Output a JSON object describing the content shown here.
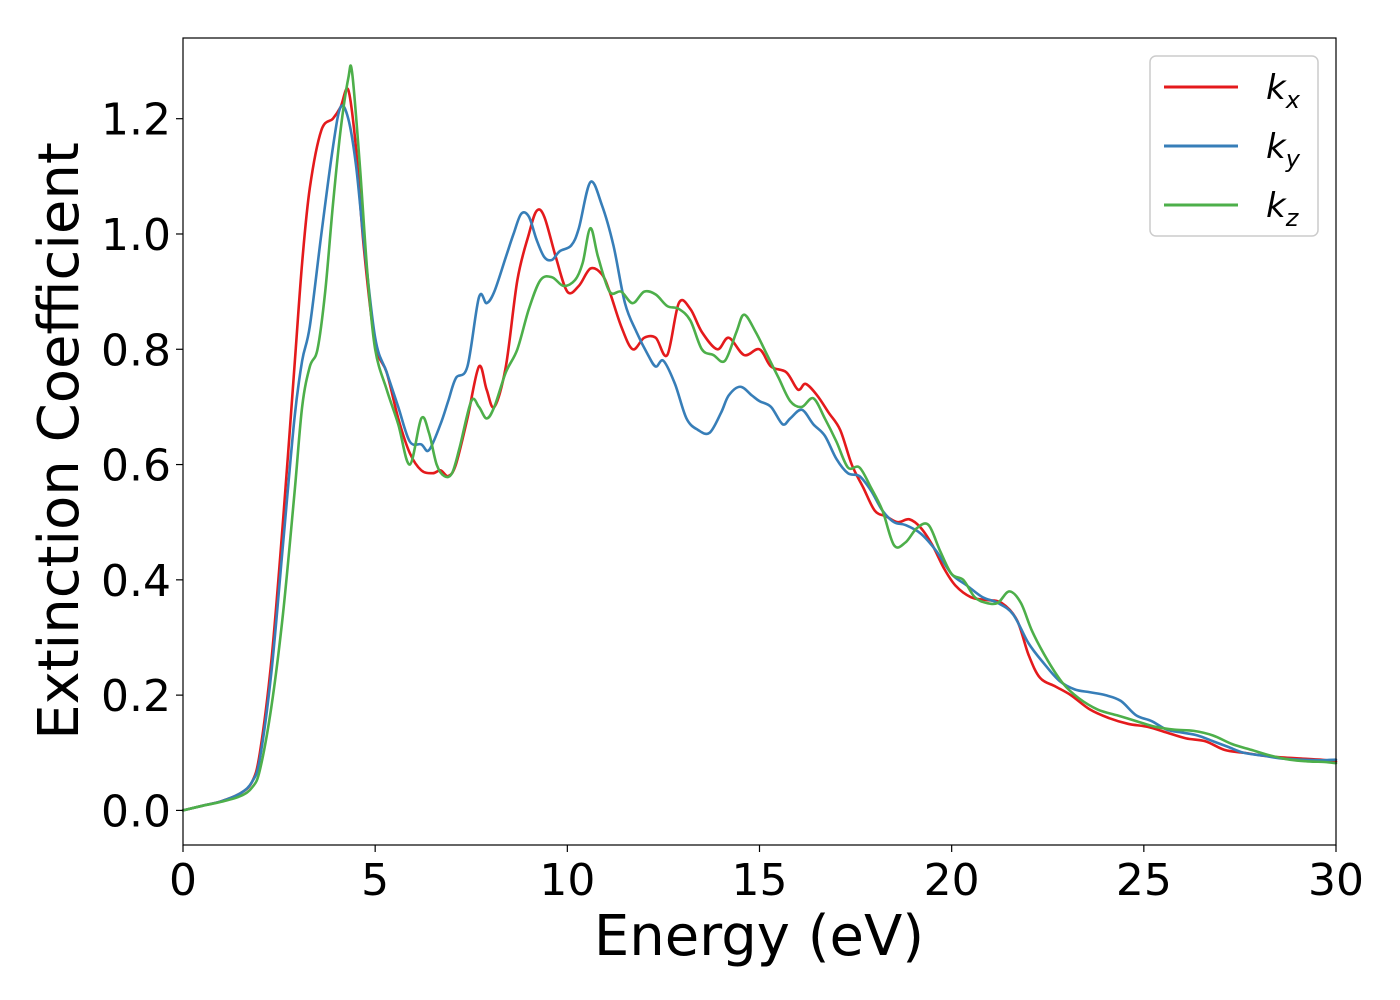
{
  "chart_data": {
    "type": "line",
    "xlabel": "Energy (eV)",
    "ylabel": "Extinction Coefficient",
    "xlim": [
      0,
      30
    ],
    "ylim": [
      -0.06,
      1.34
    ],
    "xticks": [
      0,
      5,
      10,
      15,
      20,
      25,
      30
    ],
    "yticks": [
      0.0,
      0.2,
      0.4,
      0.6,
      0.8,
      1.0,
      1.2
    ],
    "xtick_labels": [
      "0",
      "5",
      "10",
      "15",
      "20",
      "25",
      "30"
    ],
    "ytick_labels": [
      "0.0",
      "0.2",
      "0.4",
      "0.6",
      "0.8",
      "1.0",
      "1.2"
    ],
    "grid": false,
    "legend_position": "top-right",
    "series": [
      {
        "name": "k_x",
        "base": "k",
        "sub": "x",
        "color": "#e41a1c",
        "x": [
          0,
          0.5,
          1,
          1.5,
          1.8,
          2,
          2.3,
          2.6,
          2.9,
          3.1,
          3.3,
          3.6,
          3.9,
          4.1,
          4.3,
          4.5,
          4.7,
          5,
          5.3,
          5.6,
          5.9,
          6.2,
          6.5,
          6.7,
          6.9,
          7.1,
          7.4,
          7.7,
          7.9,
          8.1,
          8.4,
          8.7,
          9,
          9.2,
          9.4,
          9.7,
          10,
          10.3,
          10.6,
          10.9,
          11.1,
          11.4,
          11.7,
          12,
          12.3,
          12.6,
          12.9,
          13.2,
          13.5,
          13.9,
          14.2,
          14.6,
          15,
          15.3,
          15.7,
          16,
          16.2,
          16.5,
          16.8,
          17.1,
          17.4,
          17.7,
          18,
          18.3,
          18.6,
          18.9,
          19.2,
          19.5,
          19.8,
          20.1,
          20.5,
          20.9,
          21.3,
          21.7,
          22,
          22.3,
          22.7,
          23.1,
          23.6,
          24.1,
          24.6,
          25.1,
          25.6,
          26.1,
          26.6,
          27.1,
          27.6,
          28.1,
          28.6,
          29.1,
          29.6,
          30
        ],
        "y": [
          0,
          0.008,
          0.016,
          0.03,
          0.05,
          0.1,
          0.26,
          0.5,
          0.77,
          0.95,
          1.08,
          1.18,
          1.2,
          1.22,
          1.25,
          1.15,
          0.98,
          0.81,
          0.76,
          0.68,
          0.62,
          0.59,
          0.585,
          0.59,
          0.58,
          0.6,
          0.68,
          0.77,
          0.73,
          0.7,
          0.77,
          0.92,
          1.0,
          1.04,
          1.03,
          0.96,
          0.9,
          0.91,
          0.94,
          0.93,
          0.9,
          0.84,
          0.8,
          0.82,
          0.82,
          0.79,
          0.88,
          0.87,
          0.83,
          0.8,
          0.82,
          0.79,
          0.8,
          0.77,
          0.76,
          0.73,
          0.74,
          0.72,
          0.69,
          0.66,
          0.6,
          0.56,
          0.52,
          0.51,
          0.5,
          0.505,
          0.49,
          0.46,
          0.42,
          0.39,
          0.37,
          0.365,
          0.36,
          0.33,
          0.27,
          0.23,
          0.215,
          0.2,
          0.175,
          0.16,
          0.15,
          0.145,
          0.135,
          0.125,
          0.12,
          0.105,
          0.1,
          0.095,
          0.092,
          0.09,
          0.088,
          0.085
        ]
      },
      {
        "name": "k_y",
        "base": "k",
        "sub": "y",
        "color": "#377eb8",
        "x": [
          0,
          0.5,
          1,
          1.5,
          1.8,
          2,
          2.3,
          2.6,
          2.9,
          3.1,
          3.3,
          3.6,
          3.9,
          4.1,
          4.3,
          4.5,
          4.7,
          5,
          5.3,
          5.6,
          5.9,
          6.2,
          6.4,
          6.7,
          6.9,
          7.1,
          7.4,
          7.7,
          7.9,
          8.1,
          8.4,
          8.6,
          8.8,
          9,
          9.2,
          9.4,
          9.6,
          9.8,
          10.1,
          10.3,
          10.6,
          10.9,
          11.2,
          11.5,
          11.8,
          12.1,
          12.3,
          12.5,
          12.8,
          13.1,
          13.4,
          13.7,
          14,
          14.2,
          14.5,
          14.8,
          15,
          15.3,
          15.6,
          15.8,
          16.1,
          16.4,
          16.7,
          17,
          17.3,
          17.6,
          17.9,
          18.2,
          18.5,
          18.8,
          19.2,
          19.6,
          20,
          20.4,
          20.8,
          21.2,
          21.6,
          22,
          22.4,
          22.8,
          23.2,
          23.6,
          24,
          24.4,
          24.8,
          25.2,
          25.6,
          26,
          26.4,
          26.8,
          27.2,
          27.6,
          28.1,
          28.6,
          29.1,
          29.6,
          30
        ],
        "y": [
          0,
          0.008,
          0.016,
          0.03,
          0.05,
          0.09,
          0.24,
          0.46,
          0.68,
          0.78,
          0.84,
          1.0,
          1.15,
          1.22,
          1.2,
          1.12,
          0.99,
          0.82,
          0.76,
          0.7,
          0.64,
          0.635,
          0.625,
          0.67,
          0.71,
          0.75,
          0.77,
          0.89,
          0.88,
          0.9,
          0.96,
          1.0,
          1.035,
          1.03,
          0.99,
          0.96,
          0.955,
          0.97,
          0.98,
          1.01,
          1.09,
          1.05,
          0.98,
          0.88,
          0.83,
          0.79,
          0.77,
          0.78,
          0.74,
          0.68,
          0.66,
          0.655,
          0.69,
          0.72,
          0.735,
          0.72,
          0.71,
          0.7,
          0.67,
          0.68,
          0.695,
          0.67,
          0.65,
          0.61,
          0.585,
          0.58,
          0.555,
          0.52,
          0.5,
          0.495,
          0.48,
          0.45,
          0.41,
          0.39,
          0.37,
          0.36,
          0.34,
          0.29,
          0.255,
          0.225,
          0.21,
          0.205,
          0.2,
          0.19,
          0.165,
          0.155,
          0.14,
          0.135,
          0.13,
          0.12,
          0.11,
          0.1,
          0.095,
          0.09,
          0.088,
          0.087,
          0.088
        ]
      },
      {
        "name": "k_z",
        "base": "k",
        "sub": "z",
        "color": "#4daf4a",
        "x": [
          0,
          0.5,
          1,
          1.5,
          1.8,
          2,
          2.3,
          2.6,
          2.9,
          3.1,
          3.3,
          3.5,
          3.7,
          3.9,
          4.1,
          4.3,
          4.4,
          4.6,
          4.8,
          5,
          5.3,
          5.6,
          5.9,
          6.2,
          6.4,
          6.6,
          6.8,
          7,
          7.2,
          7.5,
          7.7,
          7.9,
          8.1,
          8.4,
          8.7,
          9,
          9.3,
          9.6,
          9.9,
          10.2,
          10.4,
          10.6,
          10.8,
          11.1,
          11.4,
          11.7,
          12,
          12.3,
          12.6,
          12.9,
          13.2,
          13.5,
          13.8,
          14.1,
          14.4,
          14.6,
          14.9,
          15.2,
          15.5,
          15.8,
          16.1,
          16.4,
          16.7,
          17,
          17.3,
          17.6,
          17.9,
          18.2,
          18.5,
          18.8,
          19.1,
          19.4,
          19.7,
          20,
          20.3,
          20.6,
          20.9,
          21.2,
          21.5,
          21.8,
          22.1,
          22.5,
          22.9,
          23.3,
          23.8,
          24.3,
          24.8,
          25.3,
          25.8,
          26.3,
          26.8,
          27.3,
          27.8,
          28.3,
          28.8,
          29.3,
          29.7,
          30
        ],
        "y": [
          0,
          0.008,
          0.015,
          0.025,
          0.04,
          0.07,
          0.18,
          0.34,
          0.55,
          0.7,
          0.77,
          0.8,
          0.9,
          1.05,
          1.18,
          1.27,
          1.28,
          1.12,
          0.93,
          0.8,
          0.73,
          0.67,
          0.6,
          0.68,
          0.655,
          0.6,
          0.58,
          0.585,
          0.63,
          0.71,
          0.7,
          0.68,
          0.7,
          0.76,
          0.8,
          0.87,
          0.92,
          0.925,
          0.91,
          0.92,
          0.95,
          1.01,
          0.96,
          0.9,
          0.9,
          0.88,
          0.9,
          0.895,
          0.875,
          0.87,
          0.85,
          0.8,
          0.79,
          0.78,
          0.83,
          0.86,
          0.83,
          0.79,
          0.75,
          0.71,
          0.7,
          0.715,
          0.68,
          0.64,
          0.595,
          0.595,
          0.56,
          0.52,
          0.46,
          0.465,
          0.49,
          0.495,
          0.45,
          0.41,
          0.4,
          0.37,
          0.36,
          0.36,
          0.38,
          0.36,
          0.31,
          0.26,
          0.22,
          0.195,
          0.175,
          0.165,
          0.155,
          0.145,
          0.14,
          0.138,
          0.13,
          0.115,
          0.105,
          0.095,
          0.088,
          0.085,
          0.084,
          0.082
        ]
      }
    ]
  }
}
